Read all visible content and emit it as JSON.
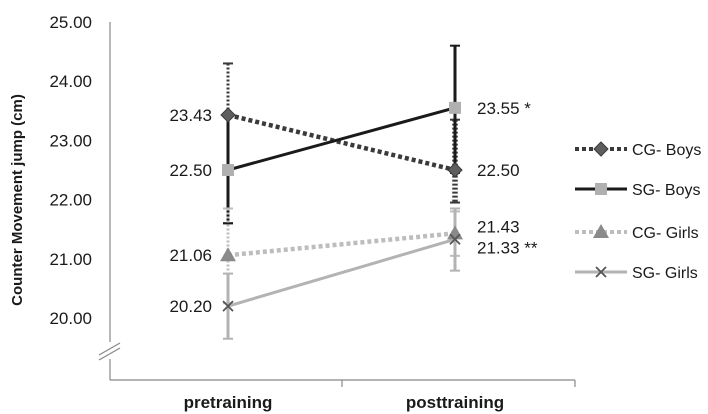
{
  "chart_data": {
    "type": "line",
    "ylabel": "Counter Movement jump (cm)",
    "xlabel": "",
    "title": "",
    "categories": [
      "pretraining",
      "posttraining"
    ],
    "ylim": [
      20.0,
      25.0
    ],
    "yticks": [
      "20.00",
      "21.00",
      "22.00",
      "23.00",
      "24.00",
      "25.00"
    ],
    "axis_break": true,
    "grid": false,
    "legend_position": "right",
    "series": [
      {
        "name": "CG- Boys",
        "values": [
          23.43,
          22.5
        ],
        "labels": [
          "23.43",
          "22.50"
        ],
        "error": [
          [
            21.6,
            24.3
          ],
          [
            21.95,
            23.35
          ]
        ],
        "color": "#3a3a3a",
        "dash": "dotted",
        "marker": "diamond"
      },
      {
        "name": "SG- Boys",
        "values": [
          22.5,
          23.55
        ],
        "labels": [
          "22.50",
          "23.55 *"
        ],
        "error": [
          [
            21.6,
            23.45
          ],
          [
            22.45,
            24.6
          ]
        ],
        "color": "#1a1a1a",
        "dash": "solid",
        "marker": "square-gray"
      },
      {
        "name": "CG- Girls",
        "values": [
          21.06,
          21.43
        ],
        "labels": [
          "21.06",
          "21.43"
        ],
        "error": [
          [
            20.25,
            21.85
          ],
          [
            21.05,
            21.8
          ]
        ],
        "color": "#bdbdbd",
        "dash": "dotted",
        "marker": "triangle"
      },
      {
        "name": "SG- Girls",
        "values": [
          20.2,
          21.33
        ],
        "labels": [
          "20.20",
          "21.33 **"
        ],
        "error": [
          [
            19.65,
            20.75
          ],
          [
            20.8,
            21.85
          ]
        ],
        "color": "#b3b3b3",
        "dash": "solid",
        "marker": "x"
      }
    ]
  }
}
